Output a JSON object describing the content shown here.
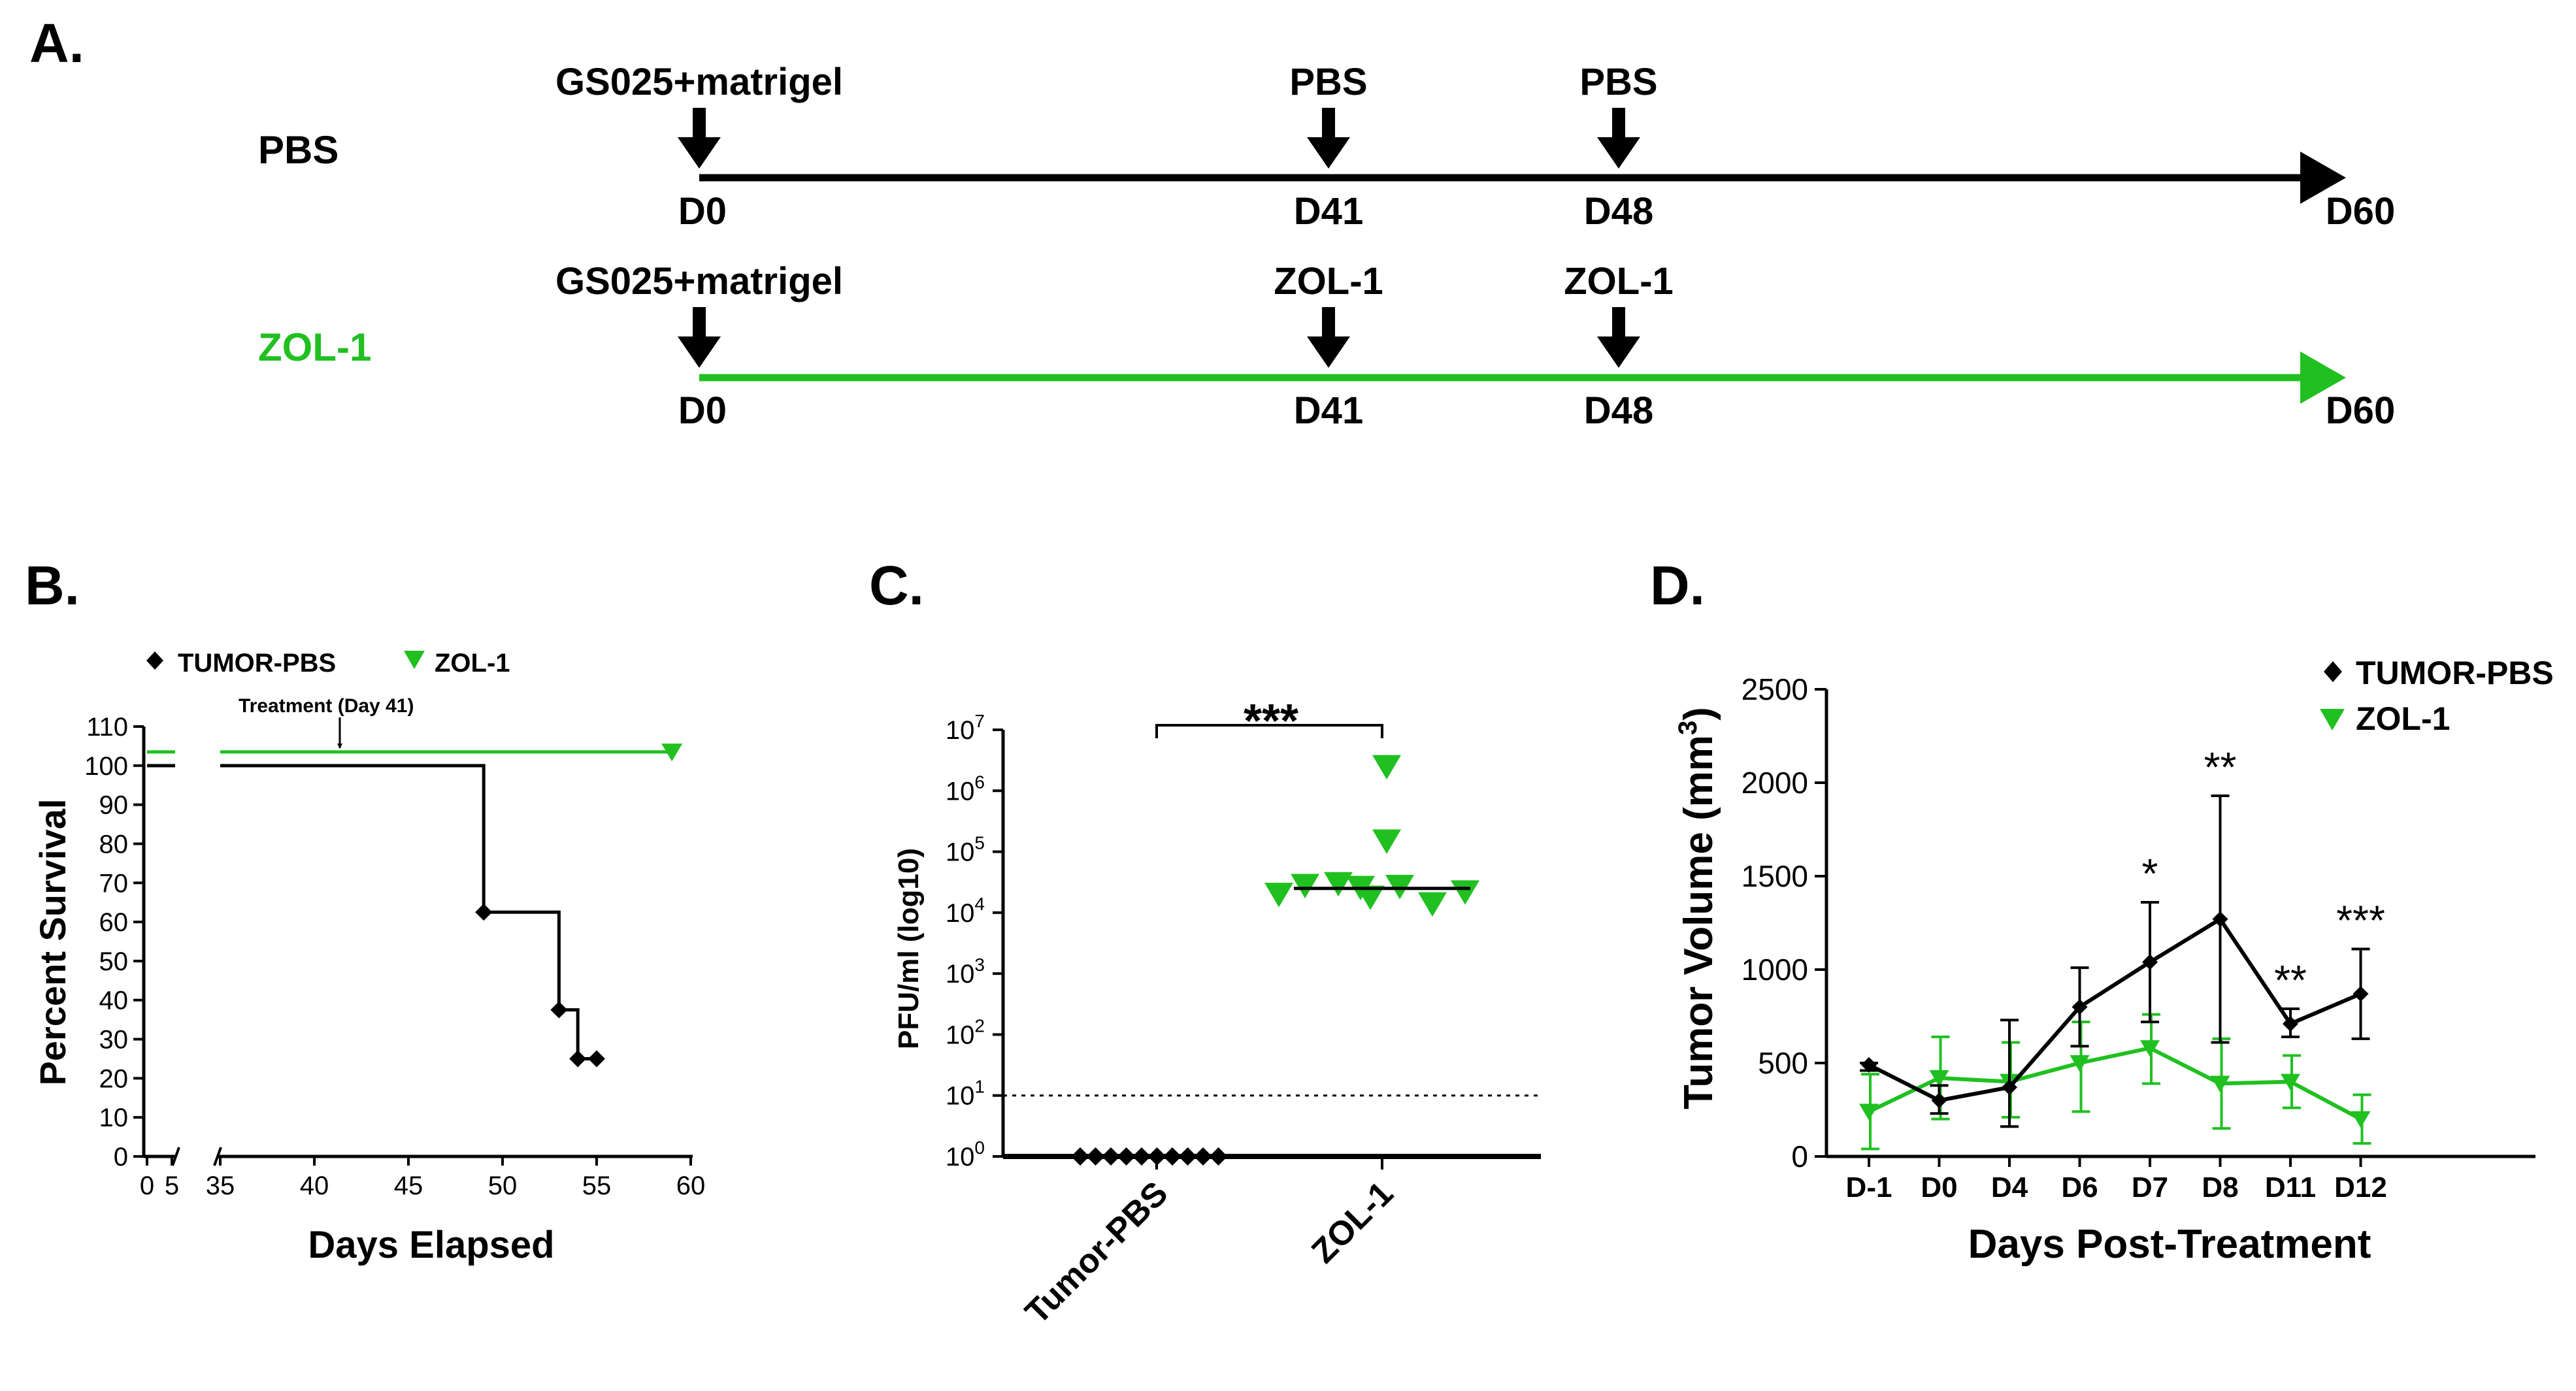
{
  "colors": {
    "pbs": "#000000",
    "zol": "#20c020",
    "axis": "#000000"
  },
  "panel_a": {
    "letter": "A.",
    "rows": [
      {
        "group": "PBS",
        "color": "#000000",
        "events": [
          {
            "label": "GS025+matrigel",
            "day": "D0"
          },
          {
            "label": "PBS",
            "day": "D41"
          },
          {
            "label": "PBS",
            "day": "D48"
          }
        ],
        "end_day": "D60"
      },
      {
        "group": "ZOL-1",
        "color": "#20c020",
        "events": [
          {
            "label": "GS025+matrigel",
            "day": "D0"
          },
          {
            "label": "ZOL-1",
            "day": "D41"
          },
          {
            "label": "ZOL-1",
            "day": "D48"
          }
        ],
        "end_day": "D60"
      }
    ]
  },
  "panel_b": {
    "letter": "B.",
    "legend": [
      "TUMOR-PBS",
      "ZOL-1"
    ],
    "annotation": "Treatment (Day 41)"
  },
  "panel_c": {
    "letter": "C.",
    "significance": "***"
  },
  "panel_d": {
    "letter": "D.",
    "legend": [
      "TUMOR-PBS",
      "ZOL-1"
    ],
    "significance": [
      "*",
      "**",
      "**",
      "***"
    ]
  },
  "chart_data": [
    {
      "type": "line",
      "subtype": "kaplan-meier",
      "xlabel": "Days Elapsed",
      "ylabel": "Percent Survival",
      "xticks": [
        "0",
        "5",
        "35",
        "40",
        "45",
        "50",
        "55",
        "60"
      ],
      "yticks": [
        "0",
        "10",
        "20",
        "30",
        "40",
        "50",
        "60",
        "70",
        "80",
        "90",
        "100",
        "110"
      ],
      "ylim": [
        0,
        110
      ],
      "x_broken_axis": {
        "low_segment": [
          0,
          5
        ],
        "high_segment": [
          35,
          60
        ]
      },
      "annotation": {
        "text": "Treatment (Day 41)",
        "x": 41
      },
      "series": [
        {
          "name": "TUMOR-PBS",
          "color": "#000000",
          "steps": [
            [
              0,
              100
            ],
            [
              49,
              100
            ],
            [
              49,
              62.5
            ],
            [
              53,
              62.5
            ],
            [
              53,
              37.5
            ],
            [
              54,
              37.5
            ],
            [
              54,
              25
            ],
            [
              55,
              25
            ]
          ],
          "censor_markers": [
            [
              49,
              62.5
            ],
            [
              53,
              37.5
            ],
            [
              54,
              25
            ],
            [
              55,
              25
            ]
          ]
        },
        {
          "name": "ZOL-1",
          "color": "#20c020",
          "steps": [
            [
              0,
              103.5
            ],
            [
              59,
              103.5
            ]
          ],
          "censor_markers": [
            [
              59,
              103.5
            ]
          ]
        }
      ]
    },
    {
      "type": "scatter",
      "ylabel": "PFU/ml (log10)",
      "yscale": "log",
      "ylim": [
        1,
        10000000
      ],
      "ytick_exponents": [
        0,
        1,
        2,
        3,
        4,
        5,
        6,
        7
      ],
      "categories": [
        "Tumor-PBS",
        "ZOL-1"
      ],
      "detection_limit": 10,
      "series": [
        {
          "name": "Tumor-PBS",
          "color": "#000000",
          "values": [
            1,
            1,
            1,
            1,
            1,
            1,
            1,
            1,
            1,
            1
          ],
          "median": 1
        },
        {
          "name": "ZOL-1",
          "color": "#20c020",
          "values": [
            2500000,
            150000,
            30000,
            28000,
            27000,
            26000,
            22000,
            20000,
            18000,
            14000
          ],
          "median": 25000
        }
      ],
      "significance": "***"
    },
    {
      "type": "line",
      "xlabel": "Days Post-Treatment",
      "ylabel": "Tumor Volume (mm³)",
      "ylabel_base": "Tumor Volume (mm",
      "ylabel_sup": "3",
      "ylabel_end": ")",
      "ylim": [
        0,
        2500
      ],
      "yticks": [
        "0",
        "500",
        "1000",
        "1500",
        "2000",
        "2500"
      ],
      "categories": [
        "D-1",
        "D0",
        "D4",
        "D6",
        "D7",
        "D8",
        "D11",
        "D12"
      ],
      "series": [
        {
          "name": "TUMOR-PBS",
          "color": "#000000",
          "values": [
            490,
            300,
            370,
            800,
            1040,
            1270,
            710,
            870
          ],
          "err_low": [
            460,
            230,
            160,
            590,
            720,
            610,
            640,
            630
          ],
          "err_high": [
            500,
            380,
            730,
            1010,
            1360,
            1930,
            790,
            1110
          ]
        },
        {
          "name": "ZOL-1",
          "color": "#20c020",
          "values": [
            240,
            420,
            400,
            500,
            580,
            390,
            400,
            200
          ],
          "err_low": [
            40,
            200,
            210,
            240,
            390,
            150,
            260,
            70
          ],
          "err_high": [
            440,
            640,
            610,
            720,
            760,
            630,
            540,
            330
          ]
        }
      ],
      "significance_marks": [
        {
          "category": "D7",
          "text": "*"
        },
        {
          "category": "D8",
          "text": "**"
        },
        {
          "category": "D11",
          "text": "**"
        },
        {
          "category": "D12",
          "text": "***"
        }
      ]
    }
  ]
}
